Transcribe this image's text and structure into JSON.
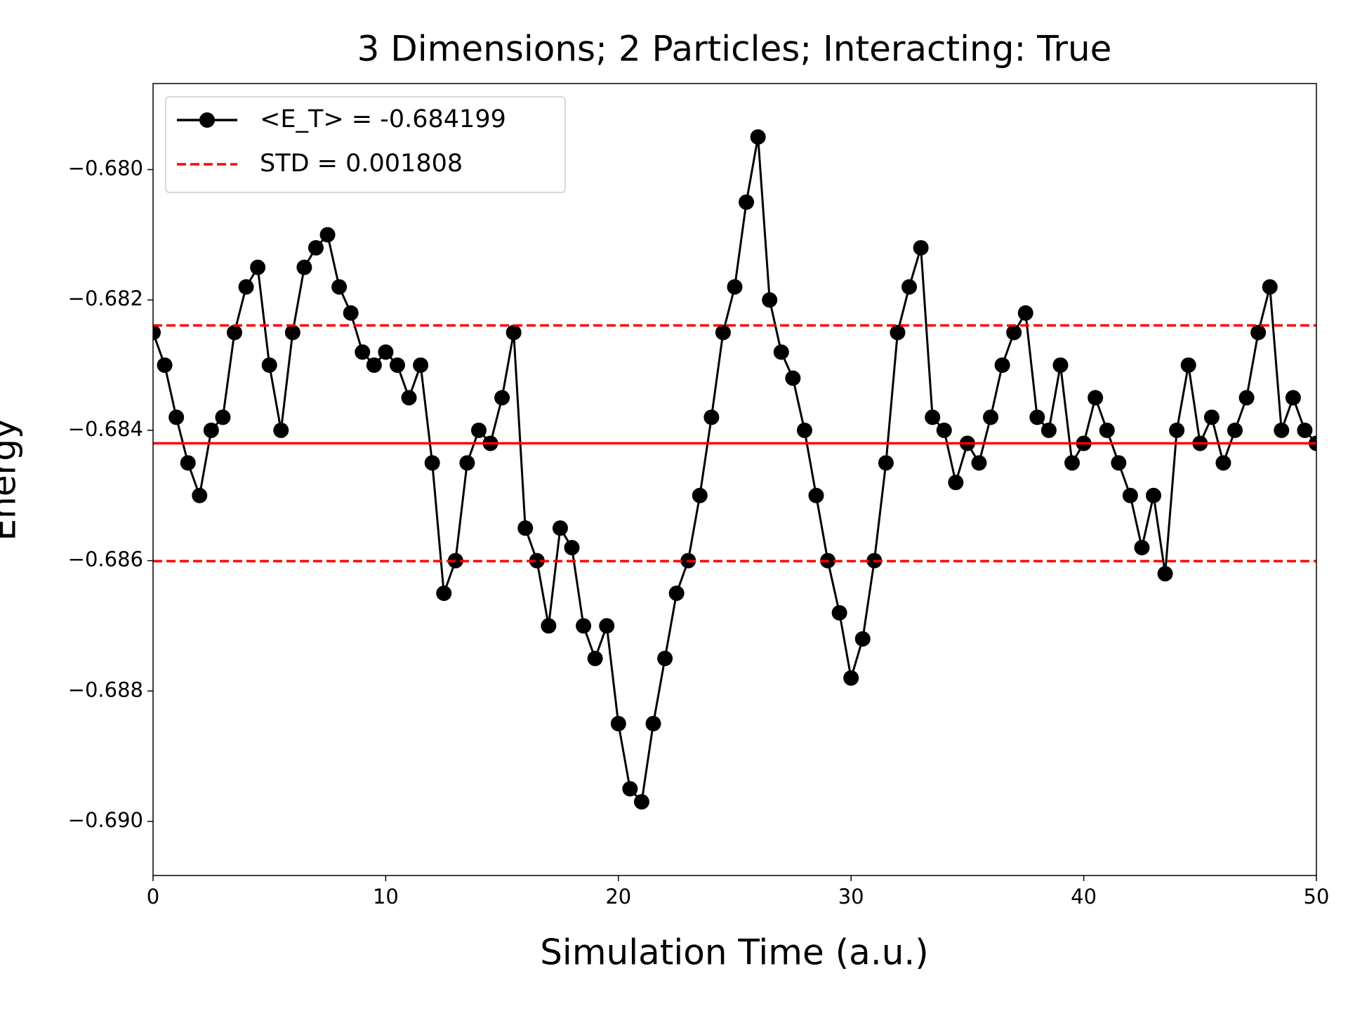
{
  "chart_data": {
    "type": "line",
    "title": "3 Dimensions; 2 Particles; Interacting: True",
    "x_label": "Simulation Time (a.u.)",
    "y_label": "Energy",
    "x": [
      0,
      0.5,
      1,
      1.5,
      2,
      2.5,
      3,
      3.5,
      4,
      4.5,
      5,
      5.5,
      6,
      6.5,
      7,
      7.5,
      8,
      8.5,
      9,
      9.5,
      10,
      10.5,
      11,
      11.5,
      12,
      12.5,
      13,
      13.5,
      14,
      14.5,
      15,
      15.5,
      16,
      16.5,
      17,
      17.5,
      18,
      18.5,
      19,
      19.5,
      20,
      20.5,
      21,
      21.5,
      22,
      22.5,
      23,
      23.5,
      24,
      24.5,
      25,
      25.5,
      26,
      26.5,
      27,
      27.5,
      28,
      28.5,
      29,
      29.5,
      30,
      30.5,
      31,
      31.5,
      32,
      32.5,
      33,
      33.5,
      34,
      34.5,
      35,
      35.5,
      36,
      36.5,
      37,
      37.5,
      38,
      38.5,
      39,
      39.5,
      40,
      40.5,
      41,
      41.5,
      42,
      42.5,
      43,
      43.5,
      44,
      44.5,
      45,
      45.5,
      46,
      46.5,
      47,
      47.5,
      48,
      48.5,
      49,
      49.5,
      50
    ],
    "series": [
      {
        "name": "<E_T> = -0.684199",
        "color": "#000000",
        "marker": "circle",
        "values": [
          -0.6825,
          -0.683,
          -0.6838,
          -0.6845,
          -0.685,
          -0.684,
          -0.6838,
          -0.6825,
          -0.6818,
          -0.6815,
          -0.683,
          -0.684,
          -0.6825,
          -0.6815,
          -0.6812,
          -0.681,
          -0.6818,
          -0.6822,
          -0.6828,
          -0.683,
          -0.6828,
          -0.683,
          -0.6835,
          -0.683,
          -0.6845,
          -0.6865,
          -0.686,
          -0.6845,
          -0.684,
          -0.6842,
          -0.6835,
          -0.6825,
          -0.6855,
          -0.686,
          -0.687,
          -0.6855,
          -0.6858,
          -0.687,
          -0.6875,
          -0.687,
          -0.6885,
          -0.6895,
          -0.6897,
          -0.6885,
          -0.6875,
          -0.6865,
          -0.686,
          -0.685,
          -0.6838,
          -0.6825,
          -0.6818,
          -0.6805,
          -0.6795,
          -0.682,
          -0.6828,
          -0.6832,
          -0.684,
          -0.685,
          -0.686,
          -0.6868,
          -0.6878,
          -0.6872,
          -0.686,
          -0.6845,
          -0.6825,
          -0.6818,
          -0.6812,
          -0.6838,
          -0.684,
          -0.6848,
          -0.6842,
          -0.6845,
          -0.6838,
          -0.683,
          -0.6825,
          -0.6822,
          -0.6838,
          -0.684,
          -0.683,
          -0.6845,
          -0.6842,
          -0.6835,
          -0.684,
          -0.6845,
          -0.685,
          -0.6858,
          -0.685,
          -0.6862,
          -0.684,
          -0.683,
          -0.6842,
          -0.6838,
          -0.6845,
          -0.684,
          -0.6835,
          -0.6825,
          -0.6818,
          -0.684,
          -0.6835,
          -0.684,
          -0.6842
        ]
      }
    ],
    "reference_lines": [
      {
        "name": "STD = 0.001808",
        "color": "#ff0000",
        "dash": true,
        "values": [
          -0.682391,
          -0.686007
        ]
      },
      {
        "color": "#ff0000",
        "dash": false,
        "values": [
          -0.684199
        ]
      }
    ],
    "xlim": [
      0,
      50
    ],
    "xticks": [
      0,
      10,
      20,
      30,
      40,
      50
    ],
    "ylim": [
      -0.69083,
      -0.67868
    ],
    "yticks": [
      {
        "value": -0.69,
        "label": "−0.690"
      },
      {
        "value": -0.688,
        "label": "−0.688"
      },
      {
        "value": -0.686,
        "label": "−0.686"
      },
      {
        "value": -0.684,
        "label": "−0.684"
      },
      {
        "value": -0.682,
        "label": "−0.682"
      },
      {
        "value": -0.68,
        "label": "−0.680"
      }
    ],
    "grid": false,
    "legend": "upper left"
  }
}
